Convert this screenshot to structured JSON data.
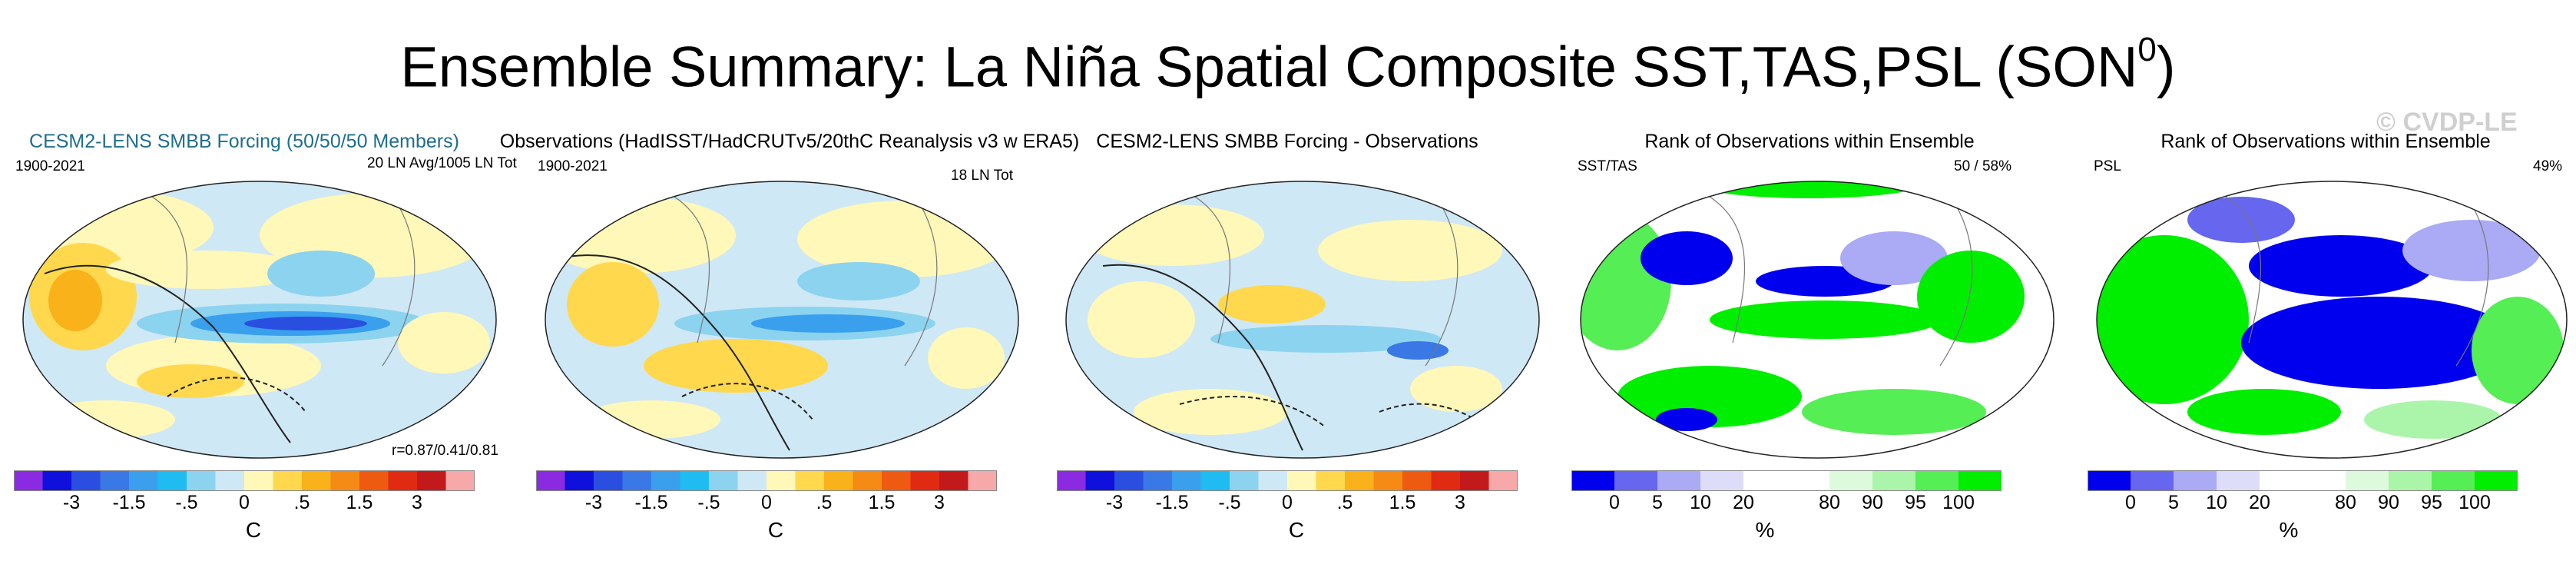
{
  "figure_title": "Ensemble Summary: La Niña Spatial Composite SST,TAS,PSL (SON",
  "figure_title_sup": "0",
  "figure_title_end": ")",
  "watermark": "© CVDP-LE",
  "panels": [
    {
      "title": "CESM2-LENS SMBB Forcing (50/50/50 Members)",
      "left_label": "1900-2021",
      "right_label": "20 LN Avg/1005 LN Tot",
      "corner_stat": "r=0.87/0.41/0.81"
    },
    {
      "title": "Observations (HadISST/HadCRUTv5/20thC Reanalysis v3 w ERA5)",
      "left_label": "1900-2021",
      "right_label": "18 LN Tot",
      "corner_stat": ""
    },
    {
      "title": "CESM2-LENS SMBB Forcing - Observations",
      "left_label": "",
      "right_label": "",
      "corner_stat": ""
    },
    {
      "title": "Rank of Observations within Ensemble",
      "left_label": "SST/TAS",
      "right_label": "50 /  58%",
      "corner_stat": ""
    },
    {
      "title": "Rank of Observations within Ensemble",
      "left_label": "PSL",
      "right_label": "49%",
      "corner_stat": ""
    }
  ],
  "colorbars": {
    "temperature": {
      "colors": [
        "#8a2be2",
        "#1010dd",
        "#2a4fe0",
        "#3a78e6",
        "#3aa0ee",
        "#1fbcf2",
        "#8cd3f0",
        "#cfe8f5",
        "#fff8b8",
        "#ffd84d",
        "#f9b21a",
        "#f58a14",
        "#ee5a10",
        "#e02a12",
        "#c21a1a",
        "#f7a8a8"
      ],
      "tick_labels": [
        "-3",
        "-1.5",
        "-.5",
        "0",
        ".5",
        "1.5",
        "3"
      ],
      "unit": "C"
    },
    "rank": {
      "colors": [
        "#0000ee",
        "#6666ee",
        "#aaaaf5",
        "#ddddfa",
        "#ffffff",
        "#ffffff",
        "#ddfadd",
        "#aaf5aa",
        "#55ee55",
        "#00ee00"
      ],
      "tick_labels": [
        "0",
        "5",
        "10",
        "20",
        "80",
        "90",
        "95",
        "100"
      ],
      "unit": "%"
    }
  },
  "chart_data": [
    {
      "type": "heatmap",
      "title": "CESM2-LENS SMBB Forcing (50/50/50 Members)",
      "period": "1900-2021",
      "members_label": "20 LN Avg/1005 LN Tot",
      "pattern_correlation": "r=0.87/0.41/0.81",
      "colorbar_ticks": [
        -3,
        -1.5,
        -0.5,
        0,
        0.5,
        1.5,
        3
      ],
      "unit": "C"
    },
    {
      "type": "heatmap",
      "title": "Observations (HadISST/HadCRUTv5/20thC Reanalysis v3 w ERA5)",
      "period": "1900-2021",
      "events_label": "18 LN Tot",
      "colorbar_ticks": [
        -3,
        -1.5,
        -0.5,
        0,
        0.5,
        1.5,
        3
      ],
      "unit": "C"
    },
    {
      "type": "heatmap",
      "title": "CESM2-LENS SMBB Forcing - Observations",
      "colorbar_ticks": [
        -3,
        -1.5,
        -0.5,
        0,
        0.5,
        1.5,
        3
      ],
      "unit": "C"
    },
    {
      "type": "heatmap",
      "title": "Rank of Observations within Ensemble",
      "variables": "SST/TAS",
      "stat": "50 /  58%",
      "colorbar_ticks": [
        0,
        5,
        10,
        20,
        80,
        90,
        95,
        100
      ],
      "unit": "%"
    },
    {
      "type": "heatmap",
      "title": "Rank of Observations within Ensemble",
      "variables": "PSL",
      "stat": "49%",
      "colorbar_ticks": [
        0,
        5,
        10,
        20,
        80,
        90,
        95,
        100
      ],
      "unit": "%"
    }
  ]
}
